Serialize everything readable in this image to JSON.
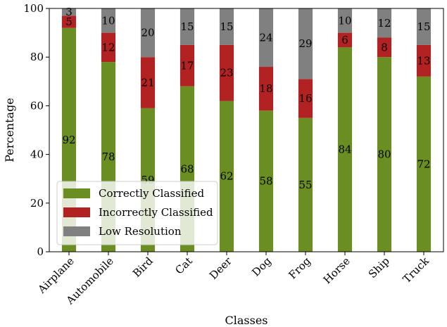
{
  "chart_data": {
    "type": "bar",
    "stacked": true,
    "categories": [
      "Airplane",
      "Automobile",
      "Bird",
      "Cat",
      "Deer",
      "Dog",
      "Frog",
      "Horse",
      "Ship",
      "Truck"
    ],
    "series": [
      {
        "name": "Correctly Classified",
        "color": "#6b8e23",
        "values": [
          92,
          78,
          59,
          68,
          62,
          58,
          55,
          84,
          80,
          72
        ]
      },
      {
        "name": "Incorrectly Classified",
        "color": "#b22222",
        "values": [
          5,
          12,
          21,
          17,
          23,
          18,
          16,
          6,
          8,
          13
        ]
      },
      {
        "name": "Low Resolution",
        "color": "#808080",
        "values": [
          3,
          10,
          20,
          15,
          15,
          24,
          29,
          10,
          12,
          15
        ]
      }
    ],
    "xlabel": "Classes",
    "ylabel": "Percentage",
    "ylim": [
      0,
      100
    ],
    "yticks": [
      0,
      20,
      40,
      60,
      80,
      100
    ],
    "grid": false,
    "legend_position": "lower-left"
  }
}
